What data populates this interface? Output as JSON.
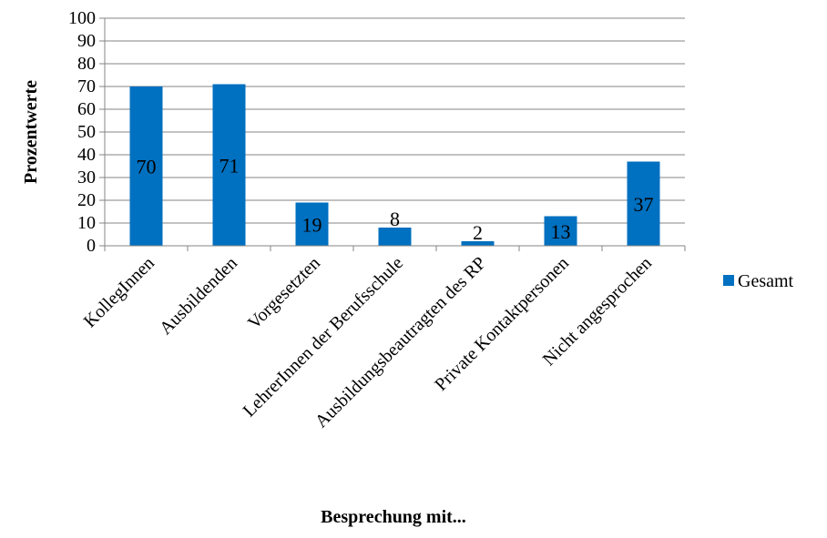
{
  "chart_data": {
    "type": "bar",
    "categories": [
      "KollegInnen",
      "Ausbildenden",
      "Vorgesetzten",
      "LehrerInnen der Berufsschule",
      "Ausbildungsbeautragten des RP",
      "Private Kontaktpersonen",
      "Nicht angesprochen"
    ],
    "series": [
      {
        "name": "Gesamt",
        "values": [
          70,
          71,
          19,
          8,
          2,
          13,
          37
        ],
        "color": "#0070C0"
      }
    ],
    "data_labels": [
      "70",
      "71",
      "19",
      "8",
      "2",
      "13",
      "37"
    ],
    "xlabel": "Besprechung mit...",
    "ylabel": "Prozentwerte",
    "ylim": [
      0,
      100
    ],
    "yticks": [
      0,
      10,
      20,
      30,
      40,
      50,
      60,
      70,
      80,
      90,
      100
    ],
    "grid": true,
    "legend_position": "right"
  }
}
